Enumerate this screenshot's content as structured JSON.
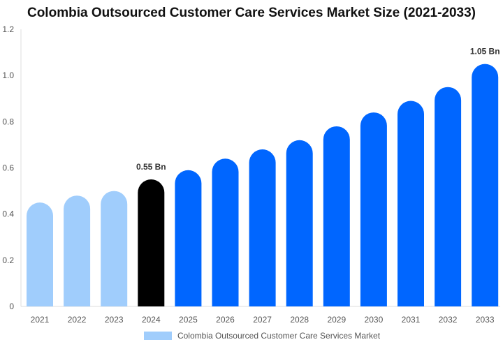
{
  "chart_data": {
    "type": "bar",
    "title": "Colombia Outsourced Customer Care Services Market Size (2021-2033)",
    "categories": [
      "2021",
      "2022",
      "2023",
      "2024",
      "2025",
      "2026",
      "2027",
      "2028",
      "2029",
      "2030",
      "2031",
      "2032",
      "2033"
    ],
    "series": [
      {
        "name": "Colombia Outsourced Customer Care Services Market",
        "values": [
          0.45,
          0.48,
          0.5,
          0.55,
          0.59,
          0.64,
          0.68,
          0.72,
          0.78,
          0.84,
          0.89,
          0.95,
          1.05
        ]
      }
    ],
    "ylim": [
      0,
      1.2
    ],
    "yticks": [
      "0",
      "0.2",
      "0.4",
      "0.6",
      "0.8",
      "1.0",
      "1.2"
    ],
    "annotations": [
      {
        "category": "2024",
        "text": "0.55 Bn"
      },
      {
        "category": "2033",
        "text": "1.05 Bn"
      }
    ],
    "colors": {
      "historical": "#a0cdfc",
      "base_year": "#000000",
      "forecast": "#0066ff"
    },
    "grid": false,
    "legend": "bottom"
  }
}
